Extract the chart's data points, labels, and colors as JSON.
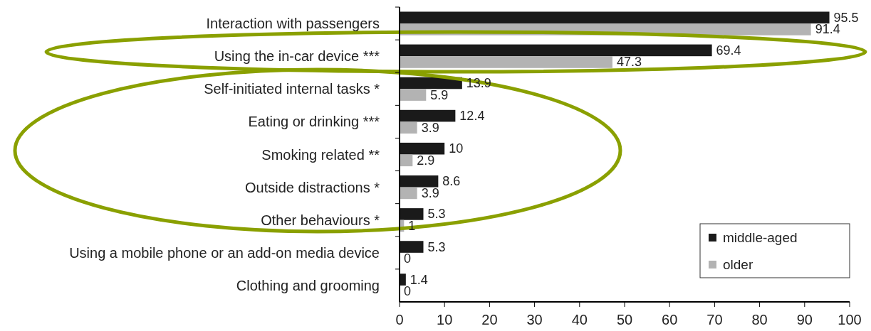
{
  "chart_data": {
    "type": "bar",
    "orientation": "horizontal",
    "categories": [
      "Interaction with passengers",
      "Using the in-car device ***",
      "Self-initiated internal tasks *",
      "Eating or drinking ***",
      "Smoking related **",
      "Outside distractions *",
      "Other behaviours *",
      "Using a mobile phone or an add-on media device",
      "Clothing and grooming"
    ],
    "series": [
      {
        "name": "middle-aged",
        "color": "#1a1a1a",
        "values": [
          95.5,
          69.4,
          13.9,
          12.4,
          10,
          8.6,
          5.3,
          5.3,
          1.4
        ]
      },
      {
        "name": "older",
        "color": "#b3b3b3",
        "values": [
          91.4,
          47.3,
          5.9,
          3.9,
          2.9,
          3.9,
          1,
          0,
          0
        ]
      }
    ],
    "xlim": [
      0,
      100
    ],
    "xticks": [
      0,
      10,
      20,
      30,
      40,
      50,
      60,
      70,
      80,
      90,
      100
    ],
    "data_labels": true,
    "legend": "bottom right",
    "grid": false
  }
}
